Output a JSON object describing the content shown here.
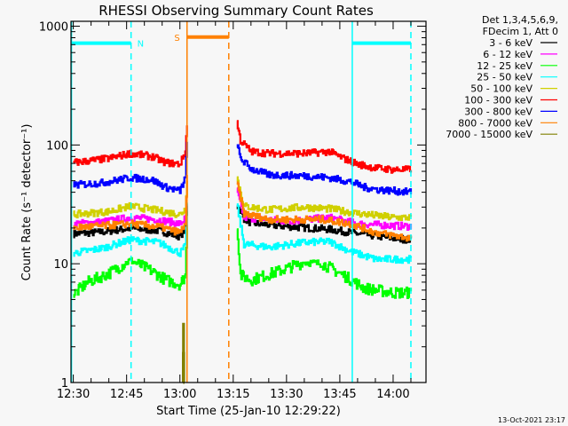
{
  "chart_data": {
    "type": "line",
    "title": "RHESSI Observing Summary Count Rates",
    "xlabel": "Start Time (25-Jan-10 12:29:22)",
    "ylabel": "Count Rate (s⁻¹ detector⁻¹)",
    "y_scale": "log",
    "ylim": [
      1,
      1100
    ],
    "x_units": "minutes since 12:30",
    "xlim": [
      -0.65,
      99.25
    ],
    "x_ticks": [
      {
        "t": 0,
        "label": "12:30"
      },
      {
        "t": 15,
        "label": "12:45"
      },
      {
        "t": 30,
        "label": "13:00"
      },
      {
        "t": 45,
        "label": "13:15"
      },
      {
        "t": 60,
        "label": "13:30"
      },
      {
        "t": 75,
        "label": "13:45"
      },
      {
        "t": 90,
        "label": "14:00"
      }
    ],
    "y_ticks": [
      {
        "v": 1,
        "label": "1"
      },
      {
        "v": 10,
        "label": "10"
      },
      {
        "v": 100,
        "label": "100"
      },
      {
        "v": 1000,
        "label": "1000"
      }
    ],
    "legend": {
      "header": [
        "Det 1,3,4,5,6,9,",
        "FDecim 1, Att 0"
      ],
      "placement": "outside-right"
    },
    "series": [
      {
        "name": "3 - 6 keV",
        "color": "#000000",
        "segments": [
          [
            [
              0,
              17.9
            ],
            [
              8,
              18.5
            ],
            [
              16,
              19.9
            ],
            [
              24,
              19
            ],
            [
              30,
              17.0
            ],
            [
              31.5,
              20
            ],
            [
              32,
              31.6
            ]
          ],
          [
            [
              46,
              31.6
            ],
            [
              48,
              24
            ],
            [
              50,
              22
            ],
            [
              60,
              20.6
            ],
            [
              72,
              19.5
            ],
            [
              80,
              17.9
            ],
            [
              90,
              16.4
            ],
            [
              95,
              15.9
            ]
          ]
        ]
      },
      {
        "name": "6 - 12 keV",
        "color": "#ff00ff",
        "segments": [
          [
            [
              0,
              21.7
            ],
            [
              8,
              22.5
            ],
            [
              16,
              24.5
            ],
            [
              24,
              23.5
            ],
            [
              30,
              21.7
            ],
            [
              31.5,
              24
            ],
            [
              32,
              31.6
            ]
          ],
          [
            [
              46,
              41
            ],
            [
              48,
              24.5
            ],
            [
              60,
              22.8
            ],
            [
              72,
              24.5
            ],
            [
              80,
              21.7
            ],
            [
              95,
              20.6
            ]
          ]
        ]
      },
      {
        "name": "12 - 25 keV",
        "color": "#00ff00",
        "segments": [
          [
            [
              0,
              5.5
            ],
            [
              4,
              7.0
            ],
            [
              10,
              8.3
            ],
            [
              16,
              10.7
            ],
            [
              22,
              8.7
            ],
            [
              26,
              7.3
            ],
            [
              30,
              6.7
            ],
            [
              31.5,
              8
            ],
            [
              32,
              22.4
            ]
          ],
          [
            [
              46,
              20.6
            ],
            [
              47,
              8.0
            ],
            [
              50,
              7.3
            ],
            [
              58,
              8.7
            ],
            [
              65,
              10.3
            ],
            [
              70,
              10
            ],
            [
              76,
              8.0
            ],
            [
              82,
              6.2
            ],
            [
              90,
              5.7
            ],
            [
              95,
              5.7
            ]
          ]
        ]
      },
      {
        "name": "25 - 50 keV",
        "color": "#00ffff",
        "segments": [
          [
            [
              0,
              12.3
            ],
            [
              8,
              13.5
            ],
            [
              16,
              15.9
            ],
            [
              24,
              15.1
            ],
            [
              30,
              12.3
            ],
            [
              31.5,
              14
            ],
            [
              32,
              31.6
            ]
          ],
          [
            [
              46,
              31.6
            ],
            [
              48,
              14.6
            ],
            [
              55,
              13.8
            ],
            [
              65,
              15.1
            ],
            [
              72,
              15.4
            ],
            [
              78,
              12.7
            ],
            [
              85,
              10.9
            ],
            [
              95,
              10.9
            ]
          ]
        ]
      },
      {
        "name": "50 - 100 keV",
        "color": "#d0d000",
        "segments": [
          [
            [
              0,
              26
            ],
            [
              10,
              27.5
            ],
            [
              16,
              30.5
            ],
            [
              24,
              28
            ],
            [
              30,
              26
            ],
            [
              31.5,
              29
            ],
            [
              32,
              53
            ]
          ],
          [
            [
              46,
              53
            ],
            [
              48,
              30.5
            ],
            [
              55,
              28.5
            ],
            [
              65,
              30
            ],
            [
              72,
              29
            ],
            [
              80,
              26.5
            ],
            [
              90,
              24.5
            ],
            [
              95,
              24.5
            ]
          ]
        ]
      },
      {
        "name": "100 - 300 keV",
        "color": "#ff0000",
        "segments": [
          [
            [
              0,
              71
            ],
            [
              10,
              77
            ],
            [
              16,
              85
            ],
            [
              22,
              80
            ],
            [
              26,
              71
            ],
            [
              30,
              69
            ],
            [
              31.5,
              88
            ],
            [
              32,
              154
            ]
          ],
          [
            [
              46,
              154
            ],
            [
              47,
              109
            ],
            [
              50,
              88
            ],
            [
              55,
              85
            ],
            [
              65,
              85
            ],
            [
              72,
              88
            ],
            [
              76,
              77
            ],
            [
              80,
              69
            ],
            [
              85,
              64
            ],
            [
              90,
              62
            ],
            [
              95,
              62
            ]
          ]
        ]
      },
      {
        "name": "300 - 800 keV",
        "color": "#0000ff",
        "segments": [
          [
            [
              0,
              46
            ],
            [
              8,
              48
            ],
            [
              16,
              53
            ],
            [
              22,
              51
            ],
            [
              26,
              44
            ],
            [
              30,
              41
            ],
            [
              31.5,
              53
            ],
            [
              32,
              105
            ]
          ],
          [
            [
              46,
              102
            ],
            [
              47,
              77
            ],
            [
              50,
              63
            ],
            [
              55,
              56
            ],
            [
              65,
              55
            ],
            [
              72,
              53
            ],
            [
              78,
              49
            ],
            [
              82,
              44
            ],
            [
              86,
              42
            ],
            [
              95,
              40
            ]
          ]
        ]
      },
      {
        "name": "800 - 7000 keV",
        "color": "#ff8000",
        "segments": [
          [
            [
              0,
              20.2
            ],
            [
              8,
              20.8
            ],
            [
              16,
              21.7
            ],
            [
              24,
              20.5
            ],
            [
              30,
              18.3
            ],
            [
              31.5,
              22
            ],
            [
              32,
              53
            ]
          ],
          [
            [
              46,
              48
            ],
            [
              48,
              26.5
            ],
            [
              55,
              23.6
            ],
            [
              70,
              23.6
            ],
            [
              78,
              21.7
            ],
            [
              85,
              18.3
            ],
            [
              95,
              16.4
            ]
          ]
        ]
      },
      {
        "name": "7000 - 15000 keV",
        "color": "#808000",
        "segments": [
          [
            [
              30.9,
              1
            ],
            [
              31,
              3.1
            ],
            [
              31.1,
              1
            ]
          ]
        ]
      }
    ],
    "annotations": {
      "vlines": [
        {
          "t": -0.5,
          "color": "#00ffff",
          "style": "solid"
        },
        {
          "t": 16.25,
          "color": "#00ffff",
          "style": "dashed"
        },
        {
          "t": 32,
          "color": "#ff8000",
          "style": "solid"
        },
        {
          "t": 43.75,
          "color": "#ff8000",
          "style": "dashed"
        },
        {
          "t": 78.5,
          "color": "#00ffff",
          "style": "solid"
        },
        {
          "t": 95,
          "color": "#00ffff",
          "style": "dashed"
        }
      ],
      "bars": [
        {
          "t0": -0.5,
          "t1": 16.25,
          "value": 720,
          "color": "#00ffff",
          "label": "N",
          "label_side": "right"
        },
        {
          "t0": 32,
          "t1": 43.75,
          "value": 810,
          "color": "#ff8000",
          "label": "S",
          "label_side": "left"
        },
        {
          "t0": 78.5,
          "t1": 95,
          "value": 720,
          "color": "#00ffff",
          "label": "",
          "label_side": "none"
        }
      ]
    }
  },
  "footer": {
    "timestamp": "13-Oct-2021 23:17"
  }
}
